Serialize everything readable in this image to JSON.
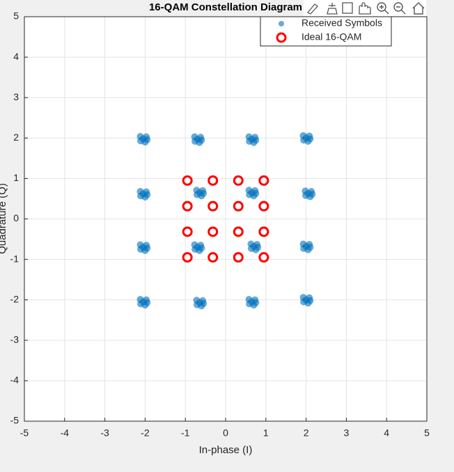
{
  "chart_data": {
    "type": "scatter",
    "title": "16-QAM Constellation Diagram",
    "x_label": "In-phase (I)",
    "y_label": "Quadrature (Q)",
    "xlim": [
      -5,
      5
    ],
    "ylim": [
      -5,
      5
    ],
    "xticks": [
      -5,
      -4,
      -3,
      -2,
      -1,
      0,
      1,
      2,
      3,
      4,
      5
    ],
    "yticks": [
      -5,
      -4,
      -3,
      -2,
      -1,
      0,
      1,
      2,
      3,
      4,
      5
    ],
    "grid": true,
    "legend": "top right",
    "series": [
      {
        "name": "Received Symbols",
        "color": "#0072bd",
        "marker": "filled",
        "x": [
          -2.05,
          -1.97,
          -2.12,
          -2.0,
          -2.11,
          -1.95,
          -0.7,
          -0.62,
          -0.77,
          -0.65,
          -0.76,
          -0.6,
          0.65,
          0.73,
          0.58,
          0.7,
          0.59,
          0.75,
          2.0,
          2.08,
          1.93,
          2.05,
          1.94,
          2.1,
          -2.05,
          -1.97,
          -2.12,
          -2.0,
          -2.11,
          -1.95,
          -0.65,
          -0.57,
          -0.72,
          -0.6,
          -0.71,
          -0.55,
          0.65,
          0.73,
          0.58,
          0.7,
          0.59,
          0.75,
          2.05,
          2.13,
          1.98,
          2.1,
          1.99,
          2.15,
          -2.05,
          -1.97,
          -2.12,
          -2.0,
          -2.11,
          -1.95,
          -0.7,
          -0.62,
          -0.77,
          -0.65,
          -0.76,
          -0.6,
          0.7,
          0.78,
          0.63,
          0.75,
          0.64,
          0.8,
          2.0,
          2.08,
          1.93,
          2.05,
          1.94,
          2.1,
          -2.05,
          -1.97,
          -2.12,
          -2.0,
          -2.11,
          -1.95,
          -0.65,
          -0.57,
          -0.72,
          -0.6,
          -0.71,
          -0.55,
          0.65,
          0.73,
          0.58,
          0.7,
          0.59,
          0.75,
          2.0,
          2.08,
          1.93,
          2.05,
          1.94,
          2.1
        ],
        "y": [
          1.98,
          2.03,
          2.04,
          1.9,
          1.93,
          1.96,
          1.97,
          2.02,
          2.03,
          1.89,
          1.92,
          1.95,
          1.97,
          2.02,
          2.03,
          1.89,
          1.92,
          1.95,
          2.0,
          2.05,
          2.06,
          1.92,
          1.95,
          1.98,
          0.62,
          0.67,
          0.68,
          0.54,
          0.57,
          0.6,
          0.65,
          0.7,
          0.71,
          0.57,
          0.6,
          0.63,
          0.65,
          0.7,
          0.71,
          0.57,
          0.6,
          0.63,
          0.63,
          0.68,
          0.69,
          0.55,
          0.58,
          0.61,
          -0.7,
          -0.65,
          -0.64,
          -0.78,
          -0.75,
          -0.72,
          -0.7,
          -0.65,
          -0.64,
          -0.78,
          -0.75,
          -0.72,
          -0.68,
          -0.63,
          -0.62,
          -0.76,
          -0.73,
          -0.7,
          -0.68,
          -0.63,
          -0.62,
          -0.76,
          -0.73,
          -0.7,
          -2.05,
          -2.0,
          -1.99,
          -2.13,
          -2.1,
          -2.07,
          -2.07,
          -2.02,
          -2.01,
          -2.15,
          -2.12,
          -2.09,
          -2.05,
          -2.0,
          -1.99,
          -2.13,
          -2.1,
          -2.07,
          -2.0,
          -1.95,
          -1.94,
          -2.08,
          -2.05,
          -2.02
        ]
      },
      {
        "name": "Ideal 16-QAM",
        "color": "#ff0000",
        "marker": "open",
        "x": [
          -0.949,
          -0.316,
          0.316,
          0.949,
          -0.949,
          -0.316,
          0.316,
          0.949,
          -0.949,
          -0.316,
          0.316,
          0.949,
          -0.949,
          -0.316,
          0.316,
          0.949
        ],
        "y": [
          0.949,
          0.949,
          0.949,
          0.949,
          0.316,
          0.316,
          0.316,
          0.316,
          -0.316,
          -0.316,
          -0.316,
          -0.316,
          -0.949,
          -0.949,
          -0.949,
          -0.949
        ]
      }
    ]
  }
}
